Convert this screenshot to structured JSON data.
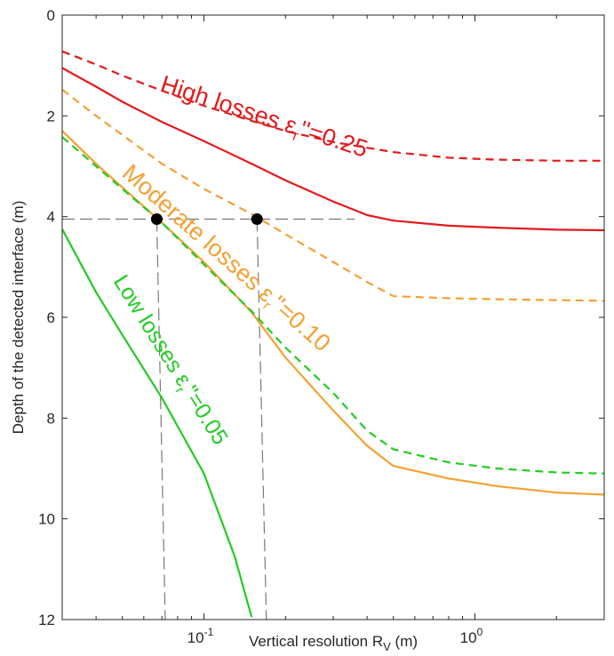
{
  "chart_data": {
    "type": "line",
    "xlabel": "Vertical resolution R",
    "xlabel_sub": "V",
    "xlabel_unit": " (m)",
    "ylabel": "Depth of the detected interface (m)",
    "xscale": "log",
    "xlim": [
      0.03,
      3.0
    ],
    "ylim": [
      12,
      0
    ],
    "grid": false,
    "xticks": [
      {
        "value": 0.1,
        "base": "10",
        "exp": "-1"
      },
      {
        "value": 1.0,
        "base": "10",
        "exp": "0"
      }
    ],
    "yticks": [
      0,
      2,
      4,
      6,
      8,
      10,
      12
    ],
    "colors": {
      "high": "#e41a1c",
      "moderate": "#f5a033",
      "low": "#22cc22"
    },
    "series": [
      {
        "key": "high_dashed",
        "group": "high",
        "style": "dashed",
        "x": [
          0.03,
          0.04,
          0.05,
          0.07,
          0.1,
          0.15,
          0.2,
          0.3,
          0.5,
          0.8,
          1.2,
          2.0,
          3.0
        ],
        "y": [
          0.72,
          0.98,
          1.2,
          1.5,
          1.8,
          2.1,
          2.3,
          2.52,
          2.72,
          2.83,
          2.87,
          2.89,
          2.89
        ]
      },
      {
        "key": "high_solid",
        "group": "high",
        "style": "solid",
        "x": [
          0.03,
          0.04,
          0.05,
          0.07,
          0.1,
          0.15,
          0.2,
          0.3,
          0.4,
          0.5,
          0.8,
          1.2,
          2.0,
          3.0
        ],
        "y": [
          1.05,
          1.42,
          1.72,
          2.12,
          2.5,
          2.95,
          3.28,
          3.7,
          3.97,
          4.08,
          4.18,
          4.22,
          4.26,
          4.27
        ]
      },
      {
        "key": "moderate_dashed",
        "group": "moderate",
        "style": "dashed",
        "x": [
          0.03,
          0.04,
          0.05,
          0.07,
          0.1,
          0.15,
          0.2,
          0.3,
          0.4,
          0.5,
          0.8,
          1.2,
          2.0,
          3.0
        ],
        "y": [
          1.48,
          2.0,
          2.38,
          2.95,
          3.45,
          3.95,
          4.35,
          4.9,
          5.3,
          5.58,
          5.62,
          5.64,
          5.66,
          5.67
        ]
      },
      {
        "key": "moderate_solid",
        "group": "moderate",
        "style": "solid",
        "x": [
          0.03,
          0.04,
          0.05,
          0.07,
          0.1,
          0.15,
          0.2,
          0.3,
          0.4,
          0.5,
          0.8,
          1.2,
          2.0,
          3.0
        ],
        "y": [
          2.3,
          2.95,
          3.42,
          4.12,
          4.9,
          5.9,
          6.8,
          7.85,
          8.55,
          8.95,
          9.2,
          9.35,
          9.48,
          9.52
        ]
      },
      {
        "key": "low_dashed",
        "group": "low",
        "style": "dashed",
        "x": [
          0.03,
          0.04,
          0.05,
          0.07,
          0.1,
          0.15,
          0.2,
          0.3,
          0.4,
          0.5,
          0.8,
          1.2,
          2.0,
          3.0
        ],
        "y": [
          2.42,
          3.0,
          3.45,
          4.12,
          4.95,
          5.88,
          6.6,
          7.5,
          8.25,
          8.62,
          8.88,
          9.0,
          9.08,
          9.1
        ]
      },
      {
        "key": "low_solid",
        "group": "low",
        "style": "solid",
        "x": [
          0.03,
          0.04,
          0.05,
          0.07,
          0.1,
          0.13,
          0.15
        ],
        "y": [
          4.25,
          5.5,
          6.35,
          7.6,
          9.1,
          10.75,
          11.95
        ]
      }
    ],
    "markers": [
      {
        "x": 0.067,
        "y": 4.05
      },
      {
        "x": 0.157,
        "y": 4.05
      }
    ],
    "guides": {
      "horizontal": {
        "y": 4.05,
        "x_from": 0.03,
        "x_to": 0.36
      },
      "drops": [
        {
          "x_top": 0.067,
          "y_top": 4.05,
          "x_bottom": 0.072,
          "y_bottom": 12
        },
        {
          "x_top": 0.157,
          "y_top": 4.05,
          "x_bottom": 0.17,
          "y_bottom": 12
        }
      ],
      "color": "#7a7a7a"
    },
    "annotations": [
      {
        "group": "high",
        "text": "High losses  ε",
        "sub": "r",
        "tail": "''=0.25"
      },
      {
        "group": "moderate",
        "text": "Moderate losses  ε",
        "sub": "r",
        "tail": "''=0.10"
      },
      {
        "group": "low",
        "text": "Low losses  ε",
        "sub": "r",
        "tail": "''=0.05"
      }
    ]
  }
}
